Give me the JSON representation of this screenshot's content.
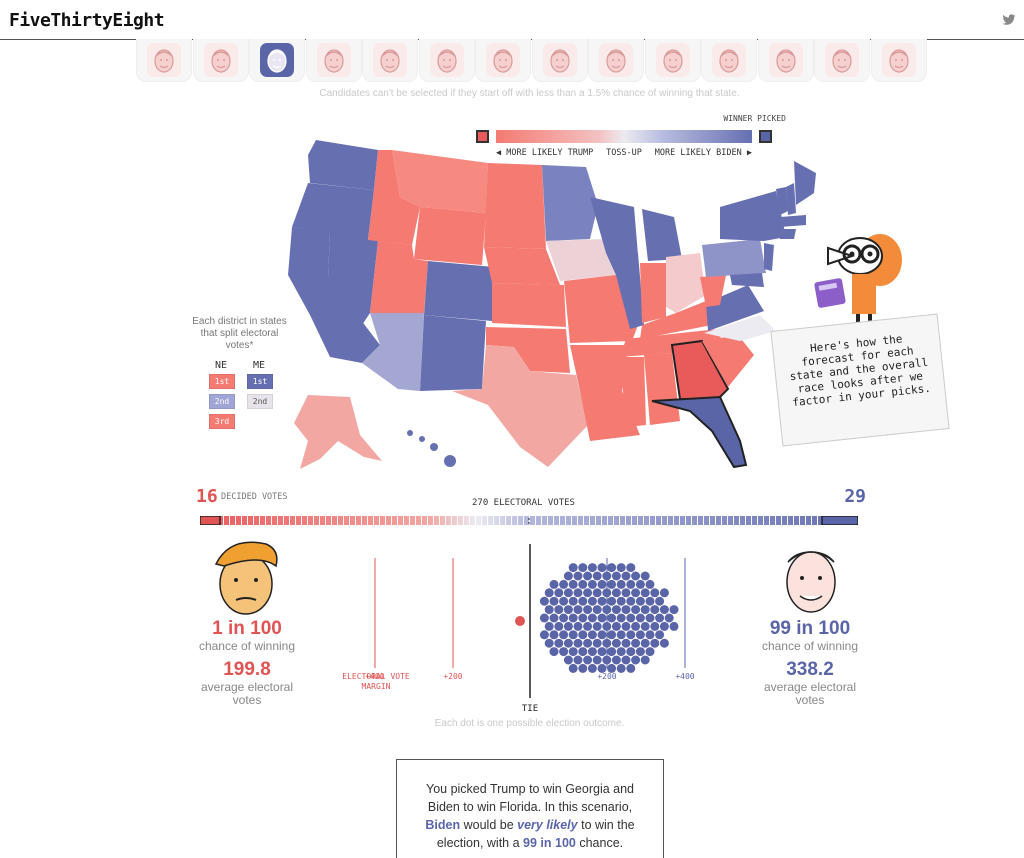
{
  "header": {
    "logo": "FiveThirtyEight"
  },
  "candidates": {
    "count": 14,
    "selected_index": 2,
    "note": "Candidates can't be selected if they start off with less than a 1.5% chance of winning that state."
  },
  "legend": {
    "winner_picked": "WINNER PICKED",
    "left_label": "◀ MORE LIKELY TRUMP",
    "mid_label": "TOSS-UP",
    "right_label": "MORE LIKELY BIDEN ▶"
  },
  "split": {
    "title": "Each district in states that split electoral votes*",
    "ne_head": "NE",
    "me_head": "ME",
    "ne": [
      {
        "label": "1st",
        "color": "#f47a72"
      },
      {
        "label": "2nd",
        "color": "#9fa5d4"
      },
      {
        "label": "3rd",
        "color": "#f47a72"
      }
    ],
    "me": [
      {
        "label": "1st",
        "color": "#6670b1"
      },
      {
        "label": "2nd",
        "color": "#e6e4ea"
      }
    ]
  },
  "mascot": {
    "speech": "Here's how the forecast for each state and the overall race looks after we factor in your picks."
  },
  "electoral": {
    "left_decided": "16",
    "decided_label": "DECIDED VOTES",
    "right_decided": "29",
    "mid_label": "270 ELECTORAL VOTES"
  },
  "trump": {
    "odds": "1 in 100",
    "odds_label": "chance of winning",
    "ev": "199.8",
    "ev_label": "average electoral votes"
  },
  "biden": {
    "odds": "99 in 100",
    "odds_label": "chance of winning",
    "ev": "338.2",
    "ev_label": "average electoral votes"
  },
  "margin_axis": {
    "left400": "+400",
    "left200": "+200",
    "margin_label": "ELECTORAL VOTE MARGIN",
    "tie": "TIE",
    "right200": "+200",
    "right400": "+400"
  },
  "dots_caption": "Each dot is one possible election outcome.",
  "scenario": {
    "line1": "You picked Trump to win Georgia and Biden to win Florida. In this scenario,",
    "biden": "Biden",
    "would_be": "would be",
    "very_likely": "very likely",
    "to_win": "to win the election, with a",
    "odds": "99 in 100",
    "chance": "chance."
  },
  "colors": {
    "red": "#e05454",
    "blue": "#5a65a8"
  }
}
